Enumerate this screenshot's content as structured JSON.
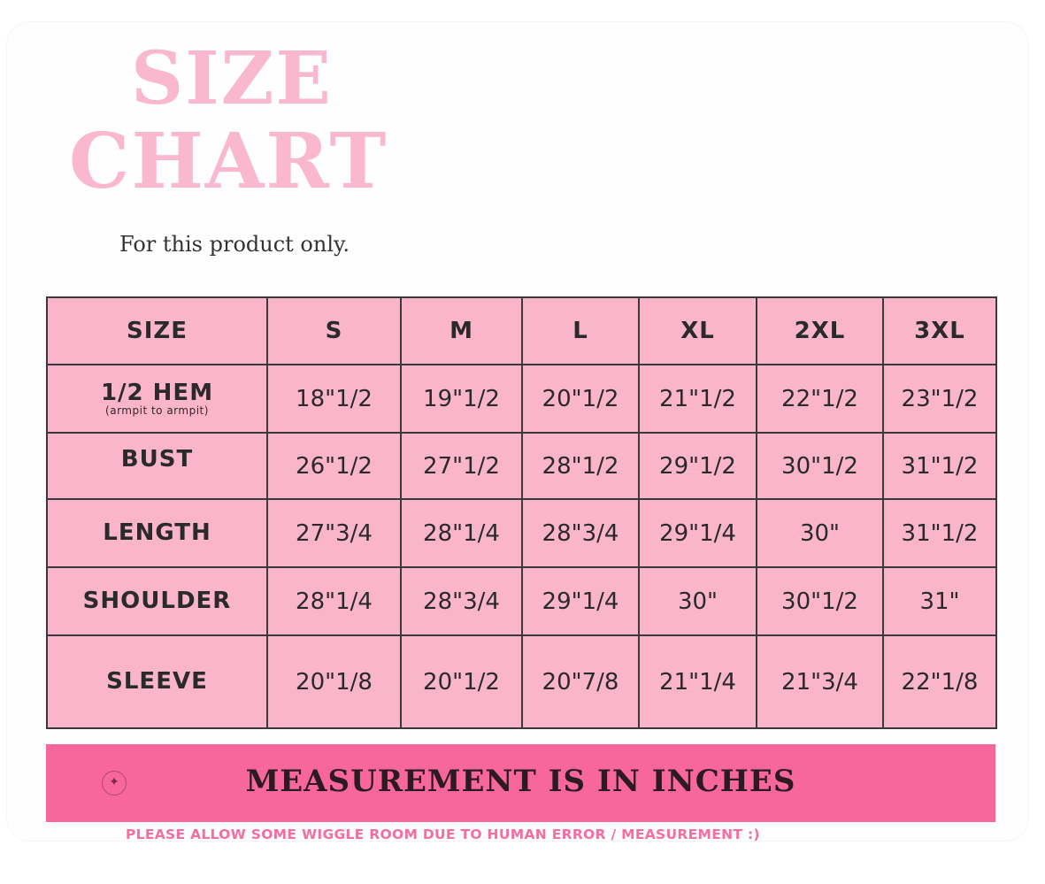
{
  "header": {
    "title_line1": "SIZE",
    "title_line2": "CHART",
    "subtitle": "For this product only."
  },
  "table": {
    "corner_label": "SIZE",
    "columns": [
      "S",
      "M",
      "L",
      "XL",
      "2XL",
      "3XL"
    ],
    "rows": [
      {
        "label": "1/2 HEM",
        "sublabel": "(armpit to armpit)",
        "values": [
          "18\"1/2",
          "19\"1/2",
          "20\"1/2",
          "21\"1/2",
          "22\"1/2",
          "23\"1/2"
        ]
      },
      {
        "label": "BUST",
        "sublabel": "",
        "values": [
          "26\"1/2",
          "27\"1/2",
          "28\"1/2",
          "29\"1/2",
          "30\"1/2",
          "31\"1/2"
        ]
      },
      {
        "label": "LENGTH",
        "sublabel": "",
        "values": [
          "27\"3/4",
          "28\"1/4",
          "28\"3/4",
          "29\"1/4",
          "30\"",
          "31\"1/2"
        ]
      },
      {
        "label": "SHOULDER",
        "sublabel": "",
        "values": [
          "28\"1/4",
          "28\"3/4",
          "29\"1/4",
          "30\"",
          "30\"1/2",
          "31\""
        ]
      },
      {
        "label": "SLEEVE",
        "sublabel": "",
        "values": [
          "20\"1/8",
          "20\"1/2",
          "20\"7/8",
          "21\"1/4",
          "21\"3/4",
          "22\"1/8"
        ]
      }
    ]
  },
  "banner": {
    "text": "MEASUREMENT IS IN INCHES",
    "icon": "sparkle-icon",
    "icon_glyph": "✦"
  },
  "footnote": "PLEASE ALLOW SOME WIGGLE ROOM DUE TO HUMAN ERROR / MEASUREMENT :)",
  "colors": {
    "title_pink": "#f9b8cd",
    "table_pink": "#fbb5cb",
    "banner_pink": "#f8679b",
    "footnote_pink": "#f46e9f",
    "text_dark": "#2a2a2a"
  }
}
